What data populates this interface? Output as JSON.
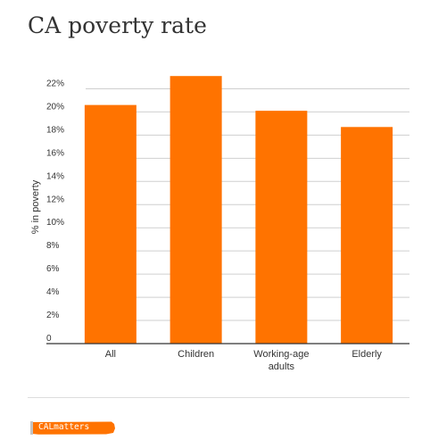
{
  "chart_data": {
    "type": "bar",
    "title": "CA poverty rate",
    "ylabel": "% in poverty",
    "xlabel": "",
    "categories": [
      "All",
      "Children",
      "Working-age\nadults",
      "Elderly"
    ],
    "values": [
      20.6,
      23.1,
      20.1,
      18.7
    ],
    "ylim": [
      0,
      23.5
    ],
    "yticks": [
      0,
      2,
      4,
      6,
      8,
      10,
      12,
      14,
      16,
      18,
      20,
      22
    ],
    "ytick_labels": [
      "0",
      "2%",
      "4%",
      "6%",
      "8%",
      "10%",
      "12%",
      "14%",
      "16%",
      "18%",
      "20%",
      "22%"
    ],
    "bar_color": "#ff7300",
    "grid": true,
    "legend": "none"
  },
  "footer": {
    "logo_text": "CALmatters",
    "logo_color": "#ff7300"
  }
}
